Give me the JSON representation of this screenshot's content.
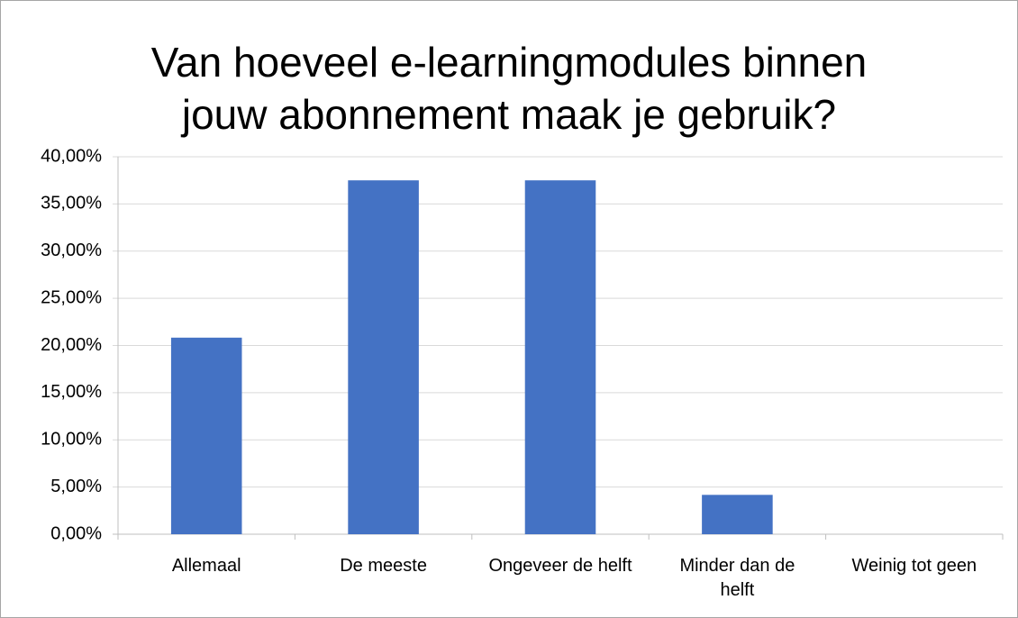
{
  "chart_data": {
    "type": "bar",
    "title": "Van hoeveel e-learningmodules binnen jouw abonnement maak je gebruik?",
    "categories": [
      "Allemaal",
      "De meeste",
      "Ongeveer de helft",
      "Minder dan de helft",
      "Weinig tot geen"
    ],
    "values": [
      20.83,
      37.5,
      37.5,
      4.17,
      0
    ],
    "color": "#4472c4",
    "ylim": [
      0,
      40
    ],
    "yticks": [
      {
        "value": 0,
        "label": "0,00%"
      },
      {
        "value": 5,
        "label": "5,00%"
      },
      {
        "value": 10,
        "label": "10,00%"
      },
      {
        "value": 15,
        "label": "15,00%"
      },
      {
        "value": 20,
        "label": "20,00%"
      },
      {
        "value": 25,
        "label": "25,00%"
      },
      {
        "value": 30,
        "label": "30,00%"
      },
      {
        "value": 35,
        "label": "35,00%"
      },
      {
        "value": 40,
        "label": "40,00%"
      }
    ],
    "grid": true
  }
}
